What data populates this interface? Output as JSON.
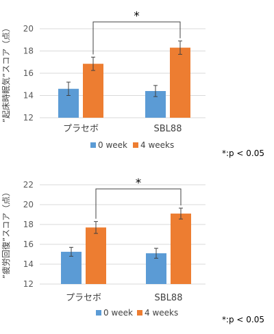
{
  "chart_data": [
    {
      "type": "bar",
      "ylabel": "”起床時眠気”スコア（点）",
      "ylim": [
        12,
        20
      ],
      "yticks": [
        12,
        14,
        16,
        18,
        20
      ],
      "grid": true,
      "legend_position": "bottom",
      "categories": [
        "プラセボ",
        "SBL88"
      ],
      "series": [
        {
          "name": "0 week",
          "color": "#5b9bd5",
          "values": [
            14.6,
            14.4
          ],
          "errors": [
            0.6,
            0.5
          ]
        },
        {
          "name": "4 weeks",
          "color": "#ed7d31",
          "values": [
            16.85,
            18.3
          ],
          "errors": [
            0.6,
            0.6
          ]
        }
      ],
      "significance_marker": "*",
      "note": "*:p < 0.05"
    },
    {
      "type": "bar",
      "ylabel": "”疲労回復”スコア（点）",
      "ylim": [
        12,
        22
      ],
      "yticks": [
        12,
        14,
        16,
        18,
        20,
        22
      ],
      "grid": true,
      "legend_position": "bottom",
      "categories": [
        "プラセボ",
        "SBL88"
      ],
      "series": [
        {
          "name": "0 week",
          "color": "#5b9bd5",
          "values": [
            15.25,
            15.1
          ],
          "errors": [
            0.45,
            0.5
          ]
        },
        {
          "name": "4 weeks",
          "color": "#ed7d31",
          "values": [
            17.7,
            19.1
          ],
          "errors": [
            0.6,
            0.55
          ]
        }
      ],
      "significance_marker": "*",
      "note": "*:p < 0.05"
    }
  ]
}
